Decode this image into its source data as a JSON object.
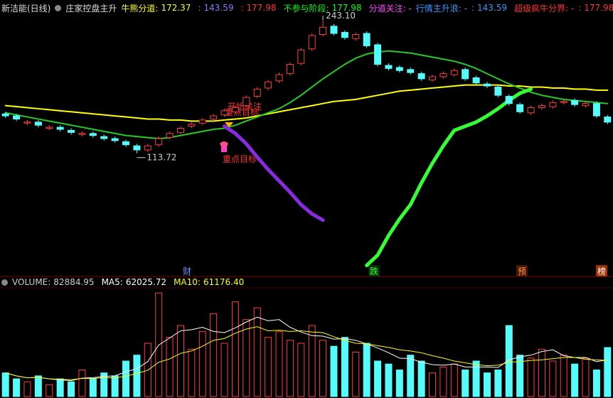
{
  "chart_data": [
    {
      "type": "candlestick",
      "header": {
        "stock": "新洁能(日线)",
        "indicator": "庄家控盘主升",
        "items": [
          {
            "label": "牛熊分道:",
            "value": 172.37,
            "color": "#ffff00"
          },
          {
            "label": ":",
            "value": 143.59,
            "color": "#8080ff"
          },
          {
            "label": ":",
            "value": 177.98,
            "color": "#ff3030"
          },
          {
            "label": "不参与阶段:",
            "value": 177.98,
            "color": "#00ff00"
          },
          {
            "label": "分道关注: -",
            "color": "#ff40ff"
          },
          {
            "label": "行情主升浪: -",
            "color": "#3399ff"
          },
          {
            "label": ":",
            "value": 143.59,
            "color": "#3399ff"
          },
          {
            "label": "超级疯牛分界: -",
            "color": "#ff3030"
          },
          {
            "label": ":",
            "value": 177.98,
            "color": "#ff3030"
          }
        ]
      },
      "ylim": [
        -5,
        250
      ],
      "up_color": "#ff3c3c",
      "down_color": "#54fcfc",
      "open": [
        152,
        150,
        143,
        144,
        138,
        139,
        136,
        132,
        133,
        130,
        128,
        125,
        121,
        117,
        122,
        129,
        134,
        140,
        143,
        147,
        151,
        154,
        160,
        169,
        177,
        184,
        191,
        201,
        215,
        229,
        237,
        231,
        225,
        230,
        219,
        199,
        197,
        195,
        191,
        185,
        188,
        190,
        195,
        187,
        181,
        178,
        169,
        161,
        153,
        158,
        159,
        163,
        165,
        160,
        162,
        149
      ],
      "high": [
        154,
        152,
        146,
        146,
        141,
        141,
        138,
        135,
        135,
        132,
        130,
        127,
        123,
        123,
        130,
        135,
        140,
        144,
        148,
        152,
        157,
        160,
        170,
        178,
        185,
        192,
        202,
        216,
        230,
        243.1,
        239,
        233,
        231,
        232,
        221,
        201,
        199,
        197,
        193,
        190,
        193,
        196,
        197,
        189,
        183,
        180,
        171,
        163,
        160,
        162,
        165,
        166,
        167,
        164,
        164,
        151
      ],
      "low": [
        148,
        145,
        141,
        139,
        136,
        135,
        132,
        130,
        129,
        126,
        124,
        120,
        113.72,
        115,
        120,
        127,
        132,
        138,
        141,
        145,
        149,
        152,
        158,
        167,
        175,
        182,
        189,
        199,
        213,
        227,
        228,
        224,
        223,
        216,
        198,
        194,
        192,
        190,
        184,
        183,
        186,
        188,
        184,
        180,
        177,
        168,
        160,
        152,
        151,
        156,
        157,
        161,
        159,
        158,
        148,
        142
      ],
      "close": [
        150,
        147,
        144,
        141,
        139,
        137,
        134,
        133,
        131,
        128,
        126,
        122,
        117,
        121,
        128,
        133,
        138,
        142,
        146,
        150,
        155,
        158,
        168,
        176,
        183,
        190,
        200,
        214,
        228,
        236,
        230,
        226,
        229,
        218,
        200,
        196,
        194,
        192,
        186,
        188,
        191,
        194,
        186,
        182,
        179,
        170,
        162,
        154,
        158,
        160,
        163,
        164,
        161,
        162,
        150,
        144
      ],
      "lines": [
        {
          "color": "#ffff00",
          "width": 2,
          "values": [
            160,
            159,
            158,
            157,
            156,
            155,
            154,
            153,
            152,
            151,
            150,
            149,
            148,
            147,
            147,
            146,
            146,
            145,
            145,
            145,
            146,
            147,
            148,
            150,
            152,
            154,
            156,
            158,
            160,
            162,
            164,
            165,
            166,
            168,
            170,
            172,
            174,
            175,
            176,
            177,
            178,
            179,
            180,
            180,
            180,
            180,
            179,
            179,
            178,
            178,
            177,
            177,
            176,
            176,
            175,
            175
          ]
        },
        {
          "color": "#22cc22",
          "width": 2,
          "values": [
            153,
            151,
            149,
            147,
            145,
            143,
            141,
            139,
            137,
            135,
            133,
            131,
            130,
            129,
            128,
            129,
            131,
            133,
            135,
            137,
            138,
            141,
            145,
            149,
            153,
            157,
            163,
            170,
            178,
            186,
            193,
            200,
            206,
            210,
            212,
            213,
            212,
            211,
            209,
            207,
            205,
            203,
            200,
            196,
            191,
            186,
            181,
            177,
            173,
            170,
            168,
            166,
            165,
            164,
            163,
            162
          ]
        },
        {
          "color": "#8a2be2",
          "width": 5,
          "values": [
            null,
            null,
            null,
            null,
            null,
            null,
            null,
            null,
            null,
            null,
            null,
            null,
            null,
            null,
            null,
            null,
            null,
            null,
            null,
            null,
            140,
            133,
            123,
            110,
            98,
            87,
            76,
            64,
            55,
            49,
            null,
            null,
            null,
            null,
            null,
            null,
            null,
            null,
            null,
            null,
            null,
            null,
            null,
            null,
            null,
            null,
            null,
            null,
            null,
            null,
            null,
            null,
            null,
            null,
            null,
            null
          ]
        },
        {
          "color": "#33ff33",
          "width": 5,
          "values": [
            null,
            null,
            null,
            null,
            null,
            null,
            null,
            null,
            null,
            null,
            null,
            null,
            null,
            null,
            null,
            null,
            null,
            null,
            null,
            null,
            null,
            null,
            null,
            null,
            null,
            null,
            null,
            null,
            null,
            null,
            null,
            null,
            null,
            5,
            15,
            34,
            50,
            64,
            85,
            104,
            121,
            136,
            140,
            144,
            150,
            157,
            165,
            172,
            176,
            null,
            null,
            null,
            null,
            null,
            null,
            null
          ]
        }
      ],
      "high_label": {
        "value": 243.1,
        "label": "243.10"
      },
      "low_label": 113.72,
      "annotations": [
        "开始关注",
        "重点目标",
        "重点目标"
      ],
      "signals": [
        "财",
        "跌",
        "预",
        "榜"
      ]
    },
    {
      "type": "bar",
      "legend": [
        {
          "label": "VOLUME:",
          "value": 82884.95,
          "color": "#cccccc"
        },
        {
          "label": "MA5:",
          "value": 62025.72,
          "color": "#ffffff"
        },
        {
          "label": "MA10:",
          "value": {
            "value": 61176.4,
            "label": "61176.40"
          },
          "color": "#ffff00"
        }
      ],
      "ylim": [
        0,
        180000
      ],
      "values": [
        40000,
        30000,
        25000,
        35000,
        20000,
        30000,
        25000,
        45000,
        30000,
        40000,
        35000,
        60000,
        70000,
        90000,
        175000,
        100000,
        120000,
        80000,
        110000,
        140000,
        90000,
        160000,
        130000,
        150000,
        100000,
        110000,
        95000,
        90000,
        120000,
        95000,
        85000,
        100000,
        75000,
        90000,
        60000,
        55000,
        45000,
        70000,
        60000,
        40000,
        50000,
        55000,
        45000,
        60000,
        40000,
        45000,
        120000,
        70000,
        65000,
        80000,
        60000,
        70000,
        55000,
        65000,
        45000,
        82884.95
      ],
      "ma": [
        {
          "color": "#ffffff",
          "values": [
            40000,
            35000,
            31667,
            32500,
            30000,
            28000,
            27000,
            31000,
            32000,
            34000,
            35000,
            42000,
            47000,
            59000,
            87000,
            99000,
            111000,
            113000,
            117000,
            110000,
            108000,
            116000,
            126000,
            134000,
            128000,
            130000,
            117000,
            109000,
            103000,
            102000,
            97000,
            98000,
            95000,
            89000,
            82000,
            74000,
            65000,
            64000,
            58000,
            54000,
            53000,
            55000,
            50000,
            50000,
            50000,
            49000,
            62000,
            67000,
            70000,
            76000,
            79000,
            69000,
            66000,
            66000,
            59000,
            62025.72
          ]
        },
        {
          "color": "#ffff00",
          "values": [
            40000,
            35000,
            31667,
            32500,
            30000,
            29167,
            28571,
            30625,
            30556,
            32000,
            31500,
            34500,
            39000,
            44500,
            58000,
            63500,
            73000,
            77000,
            85000,
            95000,
            98000,
            107000,
            114000,
            118000,
            111000,
            112000,
            110000,
            111000,
            109000,
            108000,
            101000,
            95000,
            90000,
            89000,
            86000,
            83000,
            79000,
            77000,
            74000,
            69000,
            65000,
            60000,
            57000,
            54000,
            52000,
            53000,
            58000,
            59000,
            61000,
            62000,
            64000,
            66000,
            66000,
            63000,
            62000,
            61176.4
          ]
        }
      ]
    }
  ]
}
